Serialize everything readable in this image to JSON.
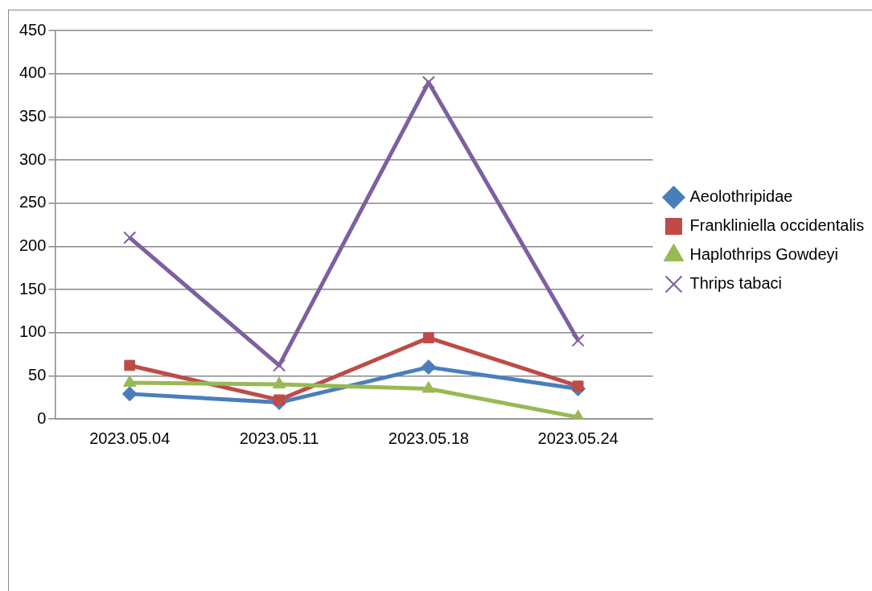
{
  "chart_data": {
    "type": "line",
    "categories": [
      "2023.05.04",
      "2023.05.11",
      "2023.05.18",
      "2023.05.24"
    ],
    "series": [
      {
        "name": "Aeolothripidae",
        "color": "#4a7ebb",
        "marker": "diamond",
        "values": [
          29,
          19,
          60,
          35
        ]
      },
      {
        "name": "Frankliniella occidentalis",
        "color": "#be4b48",
        "marker": "square",
        "values": [
          62,
          22,
          94,
          38
        ]
      },
      {
        "name": "Haplothrips Gowdeyi",
        "color": "#98b954",
        "marker": "triangle",
        "values": [
          42,
          40,
          35,
          2
        ]
      },
      {
        "name": "Thrips tabaci",
        "color": "#7d60a0",
        "marker": "cross",
        "values": [
          210,
          62,
          390,
          91
        ]
      }
    ],
    "ylim": [
      0,
      450
    ],
    "yticks": [
      0,
      50,
      100,
      150,
      200,
      250,
      300,
      350,
      400,
      450
    ],
    "grid": "y",
    "legend": "right",
    "line_style": "solid"
  }
}
